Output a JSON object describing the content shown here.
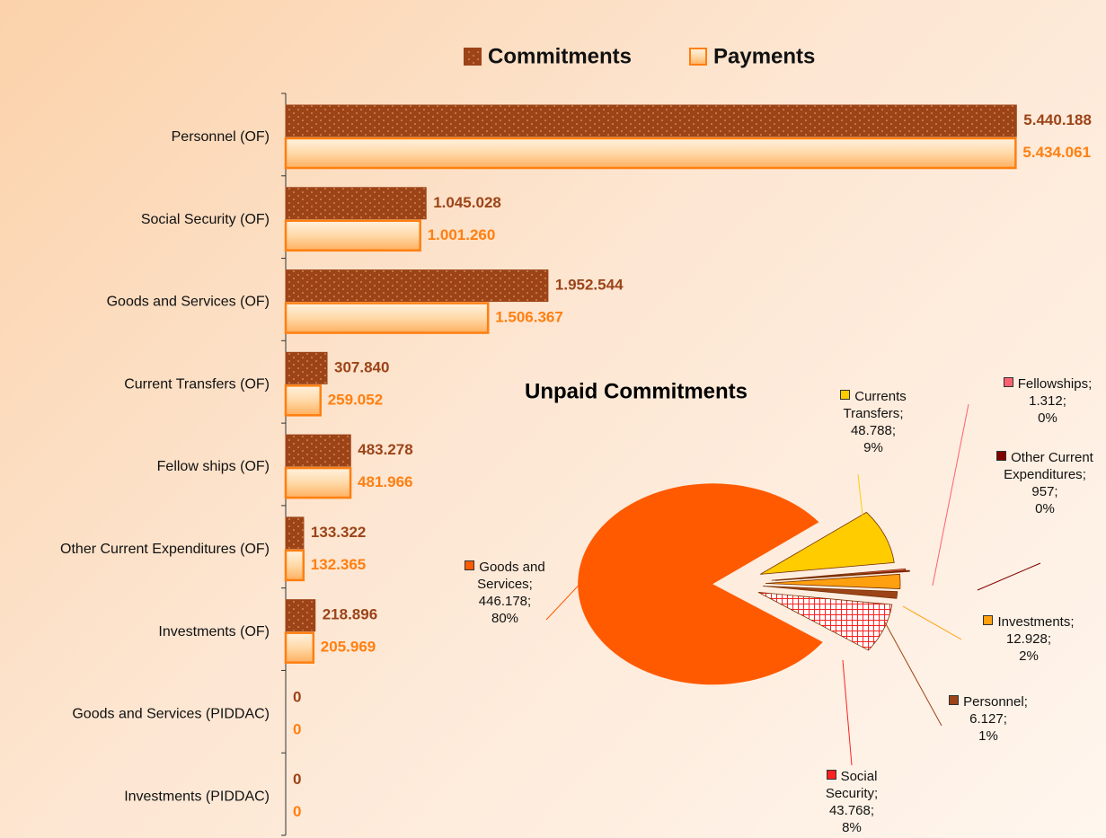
{
  "chart_data": [
    {
      "type": "bar",
      "orientation": "horizontal",
      "categories": [
        "Personnel (OF)",
        "Social Security (OF)",
        "Goods and Services (OF)",
        "Current Transfers (OF)",
        "Fellow ships (OF)",
        "Other Current Expenditures (OF)",
        "Investments (OF)",
        "Goods and Services (PIDDAC)",
        "Investments (PIDDAC)"
      ],
      "series": [
        {
          "name": "Commitments",
          "color": "#9c4418",
          "values": [
            5440188,
            1045028,
            1952544,
            307840,
            483278,
            133322,
            218896,
            0,
            0
          ],
          "value_labels": [
            "5.440.188",
            "1.045.028",
            "1.952.544",
            "307.840",
            "483.278",
            "133.322",
            "218.896",
            "0",
            "0"
          ]
        },
        {
          "name": "Payments",
          "color": "#ff7f10",
          "values": [
            5434061,
            1001260,
            1506367,
            259052,
            481966,
            132365,
            205969,
            0,
            0
          ],
          "value_labels": [
            "5.434.061",
            "1.001.260",
            "1.506.367",
            "259.052",
            "481.966",
            "132.365",
            "205.969",
            "0",
            "0"
          ]
        }
      ],
      "xlim": [
        0,
        6000000
      ],
      "legend": "top"
    },
    {
      "type": "pie",
      "title": "Unpaid Commitments",
      "categories": [
        "Currents Transfers",
        "Fellowships",
        "Other Current Expenditures",
        "Investments",
        "Personnel",
        "Social Security",
        "Goods and Services"
      ],
      "values": [
        48788,
        1312,
        957,
        12928,
        6127,
        43768,
        446178
      ],
      "value_labels": [
        "48.788",
        "1.312",
        "957",
        "12.928",
        "6.127",
        "43.768",
        "446.178"
      ],
      "percent_labels": [
        "9%",
        "0%",
        "0%",
        "2%",
        "1%",
        "8%",
        "80%"
      ],
      "label_separator": ";",
      "colors": [
        "#ffcc00",
        "#ff6070",
        "#800000",
        "#ffa010",
        "#9c4418",
        "#ff2020",
        "#ff5a00"
      ]
    }
  ]
}
